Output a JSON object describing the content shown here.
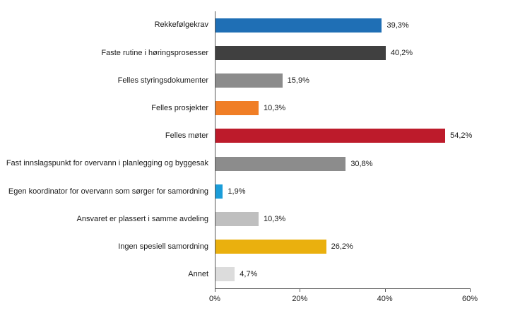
{
  "chart_data": {
    "type": "bar",
    "orientation": "horizontal",
    "title": "",
    "xlabel": "",
    "ylabel": "",
    "categories": [
      "Rekkefølgekrav",
      "Faste rutine i høringsprosesser",
      "Felles styringsdokumenter",
      "Felles prosjekter",
      "Felles møter",
      "Fast innslagspunkt for overvann i planlegging og byggesak",
      "Egen koordinator for overvann som sørger for samordning",
      "Ansvaret er plassert i samme avdeling",
      "Ingen spesiell samordning",
      "Annet"
    ],
    "values": [
      39.3,
      40.2,
      15.9,
      10.3,
      54.2,
      30.8,
      1.9,
      10.3,
      26.2,
      4.7
    ],
    "value_labels": [
      "39,3%",
      "40,2%",
      "15,9%",
      "10,3%",
      "54,2%",
      "30,8%",
      "1,9%",
      "10,3%",
      "26,2%",
      "4,7%"
    ],
    "bar_colors": [
      "#1F6FB5",
      "#404040",
      "#8C8C8C",
      "#F07E26",
      "#BD1B2B",
      "#8C8C8C",
      "#1B9DD9",
      "#BFBFBF",
      "#EAB00E",
      "#DCDCDC"
    ],
    "xlim": [
      0,
      60
    ],
    "x_ticks": [
      "0%",
      "20%",
      "40%",
      "60%"
    ],
    "x_tick_values": [
      0,
      20,
      40,
      60
    ],
    "grid": false,
    "legend": false,
    "background_color": "#ffffff",
    "axis_color": "#595959"
  }
}
